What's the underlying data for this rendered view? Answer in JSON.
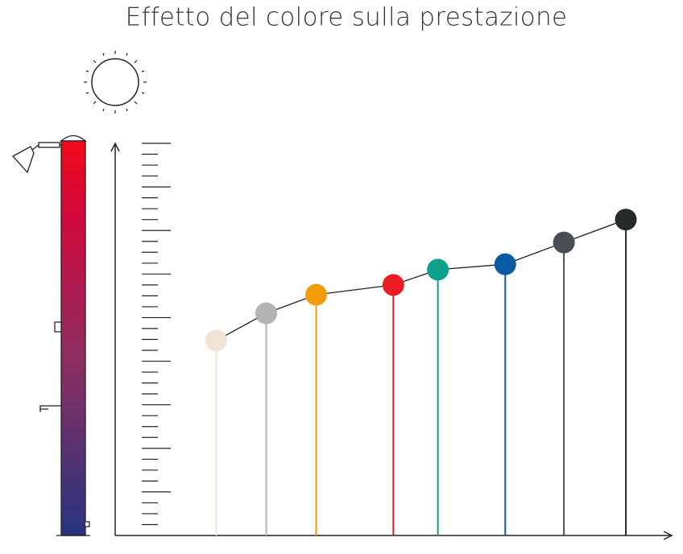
{
  "chart_data": {
    "type": "lollipop",
    "title": "Effetto del colore sulla prestazione",
    "x": [
      9.3,
      13.9,
      18.5,
      25.6,
      29.7,
      35.9,
      41.3,
      47.0
    ],
    "values": [
      17.9,
      20.4,
      22.1,
      23.0,
      24.4,
      24.9,
      26.9,
      29.0
    ],
    "colors": [
      "#efe4d6",
      "#b3b3b3",
      "#f29c0c",
      "#ec1c24",
      "#0ea08e",
      "#0b5aa4",
      "#4a4d54",
      "#262a28"
    ],
    "xlim": [
      0,
      51
    ],
    "ylim": [
      0,
      36
    ],
    "yticks": [
      1,
      2,
      3,
      4,
      5,
      6,
      7,
      8,
      9,
      10,
      11,
      12,
      13,
      14,
      15,
      16,
      17,
      18,
      19,
      20,
      21,
      22,
      23,
      24,
      25,
      26,
      27,
      28,
      29,
      30,
      31,
      32,
      33,
      34,
      35,
      36
    ]
  }
}
